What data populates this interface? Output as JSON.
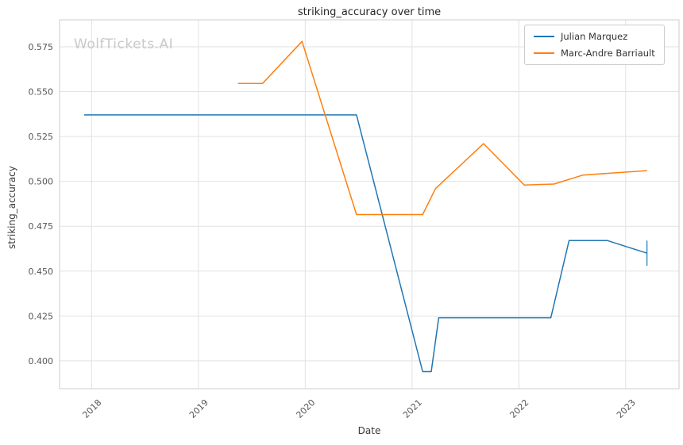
{
  "chart_data": {
    "type": "line",
    "title": "striking_accuracy over time",
    "xlabel": "Date",
    "ylabel": "striking_accuracy",
    "watermark": "WolfTickets.AI",
    "grid": true,
    "legend_position": "upper right",
    "xlim": [
      2017.7,
      2023.5
    ],
    "ylim": [
      0.3845,
      0.59
    ],
    "x_ticks": [
      2018,
      2019,
      2020,
      2021,
      2022,
      2023
    ],
    "y_ticks": [
      0.4,
      0.425,
      0.45,
      0.475,
      0.5,
      0.525,
      0.55,
      0.575
    ],
    "series": [
      {
        "name": "Julian Marquez",
        "color": "#1f77b4",
        "x": [
          2017.93,
          2020.48,
          2021.1,
          2021.18,
          2021.25,
          2022.3,
          2022.47,
          2022.83,
          2023.2
        ],
        "y": [
          0.537,
          0.537,
          0.394,
          0.394,
          0.424,
          0.424,
          0.467,
          0.467,
          0.46
        ],
        "error_bar_last": 0.007
      },
      {
        "name": "Marc-Andre Barriault",
        "color": "#ff7f0e",
        "x": [
          2019.37,
          2019.6,
          2019.97,
          2020.48,
          2021.1,
          2021.22,
          2021.67,
          2022.05,
          2022.33,
          2022.6,
          2023.2
        ],
        "y": [
          0.5545,
          0.5545,
          0.578,
          0.4815,
          0.4815,
          0.496,
          0.521,
          0.498,
          0.4985,
          0.5035,
          0.506
        ]
      }
    ]
  }
}
